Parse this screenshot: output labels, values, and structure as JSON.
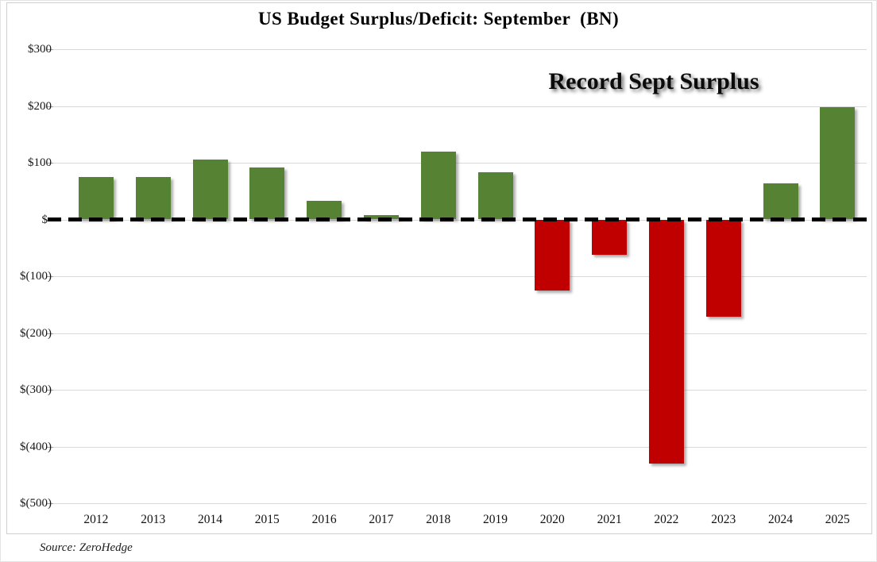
{
  "header": {
    "title": "US Budget Surplus/Deficit: September  (BN)"
  },
  "annotation": {
    "text": "Record Sept Surplus"
  },
  "footer": {
    "source": "Source: ZeroHedge"
  },
  "colors": {
    "surplus_green": "#568234",
    "deficit_red": "#C00000",
    "gridline_gray": "#D9D9D9",
    "zero_line_black": "#000000"
  },
  "chart_data": {
    "type": "bar",
    "title": "US Budget Surplus/Deficit: September (BN)",
    "categories": [
      "2012",
      "2013",
      "2014",
      "2015",
      "2016",
      "2017",
      "2018",
      "2019",
      "2020",
      "2021",
      "2022",
      "2023",
      "2024",
      "2025"
    ],
    "values": [
      75,
      75,
      106,
      91,
      33,
      8,
      119,
      83,
      -125,
      -62,
      -430,
      -171,
      64,
      198
    ],
    "series_name": "September budget surplus/deficit ($BN)",
    "xlabel": "",
    "ylabel": "",
    "ylim": [
      -500,
      300
    ],
    "y_ticks": [
      {
        "value": 300,
        "label": "$300"
      },
      {
        "value": 200,
        "label": "$200"
      },
      {
        "value": 100,
        "label": "$100"
      },
      {
        "value": 0,
        "label": "$-"
      },
      {
        "value": -100,
        "label": "$(100)"
      },
      {
        "value": -200,
        "label": "$(200)"
      },
      {
        "value": -300,
        "label": "$(300)"
      },
      {
        "value": -400,
        "label": "$(400)"
      },
      {
        "value": -500,
        "label": "$(500)"
      }
    ],
    "grid": true,
    "legend": false,
    "zero_line_style": "dashed",
    "bar_colors": {
      "positive": "#568234",
      "negative": "#C00000"
    },
    "annotations": [
      {
        "text": "Record Sept Surplus",
        "refers_to_year": "2025"
      }
    ]
  }
}
